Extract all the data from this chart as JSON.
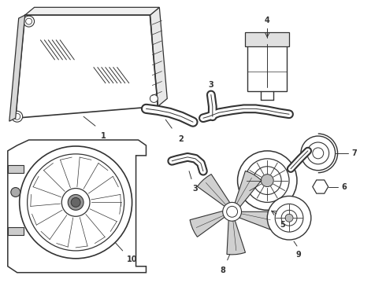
{
  "bg_color": "#ffffff",
  "line_color": "#333333",
  "fig_width": 4.9,
  "fig_height": 3.6,
  "dpi": 100
}
